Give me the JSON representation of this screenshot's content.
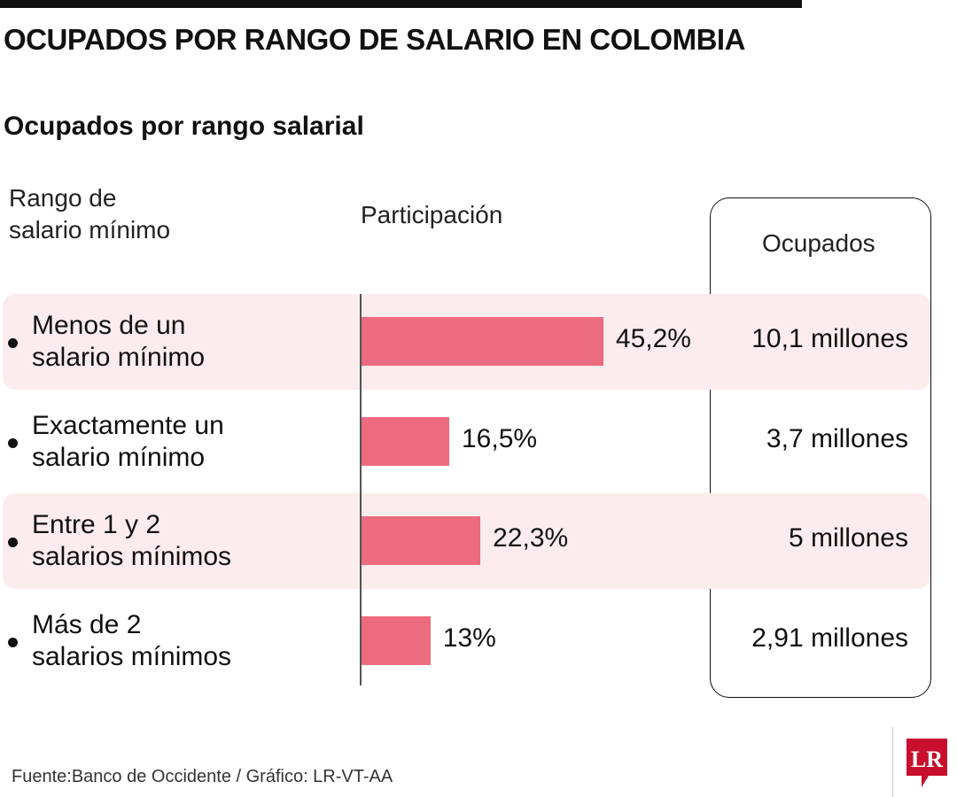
{
  "title": "OCUPADOS POR RANGO DE SALARIO EN COLOMBIA",
  "subtitle": "Ocupados por rango salarial",
  "headers": {
    "range_line1": "Rango de",
    "range_line2": "salario mínimo",
    "share": "Participación",
    "employed": "Ocupados"
  },
  "chart_data": {
    "type": "bar",
    "orientation": "horizontal",
    "categories": [
      [
        "Menos de un",
        "salario mínimo"
      ],
      [
        "Exactamente un",
        "salario mínimo"
      ],
      [
        "Entre 1 y 2",
        "salarios mínimos"
      ],
      [
        "Más de 2",
        "salarios mínimos"
      ]
    ],
    "values": [
      45.2,
      16.5,
      22.3,
      13
    ],
    "value_labels": [
      "45,2%",
      "16,5%",
      "22,3%",
      "13%"
    ],
    "occupied": [
      "10,1 millones",
      "3,7 millones",
      "5 millones",
      "2,91 millones"
    ],
    "unit": "%",
    "bar_color": "#ec6b7e",
    "band_color": "#fdeced"
  },
  "source": "Fuente:Banco de Occidente / Gráfico: LR-VT-AA",
  "logo": {
    "text": "LR",
    "color": "#c8102e"
  }
}
